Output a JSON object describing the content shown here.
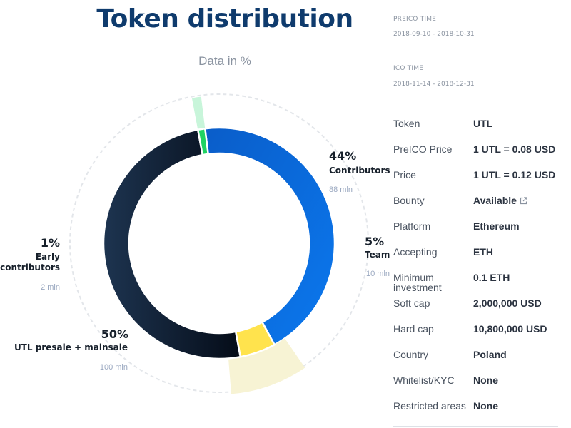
{
  "title": "Token distribution",
  "subtitle": "Data in %",
  "preico": {
    "label": "PREICO TIME",
    "dates": "2018-09-10 - 2018-10-31"
  },
  "ico": {
    "label": "ICO TIME",
    "dates": "2018-11-14 - 2018-12-31"
  },
  "info": [
    {
      "key": "Token",
      "value": "UTL"
    },
    {
      "key": "PreICO Price",
      "value": "1 UTL = 0.08 USD"
    },
    {
      "key": "Price",
      "value": "1 UTL = 0.12 USD"
    },
    {
      "key": "Bounty",
      "value": "Available",
      "icon": "external-link-icon"
    },
    {
      "key": "Platform",
      "value": "Ethereum"
    },
    {
      "key": "Accepting",
      "value": "ETH"
    },
    {
      "key": "Minimum investment",
      "value": "0.1 ETH"
    },
    {
      "key": "Soft cap",
      "value": "2,000,000 USD"
    },
    {
      "key": "Hard cap",
      "value": "10,800,000 USD"
    },
    {
      "key": "Country",
      "value": "Poland"
    },
    {
      "key": "Whitelist/KYC",
      "value": "None"
    },
    {
      "key": "Restricted areas",
      "value": "None"
    }
  ],
  "chart_data": {
    "type": "pie",
    "title": "Token distribution",
    "subtitle": "Data in %",
    "slices": [
      {
        "name": "Contributors",
        "value": 44,
        "label": "44%",
        "amount": "88 mln",
        "color": "#0b6fe0",
        "color2": "#0753b8"
      },
      {
        "name": "Team",
        "value": 5,
        "label": "5%",
        "amount": "10 mln",
        "color": "#ffe34d",
        "color2": "#f6d63a",
        "highlight": "#f7f3d4"
      },
      {
        "name": "UTL presale + mainsale",
        "value": 50,
        "label": "50%",
        "amount": "100 mln",
        "color": "#1b2f45",
        "color2": "#07101d"
      },
      {
        "name": "Early contributors",
        "value": 1,
        "label": "1%",
        "amount": "2 mln",
        "color": "#1fd262",
        "color2": "#1fd262",
        "highlight": "#c8f5da"
      }
    ]
  }
}
